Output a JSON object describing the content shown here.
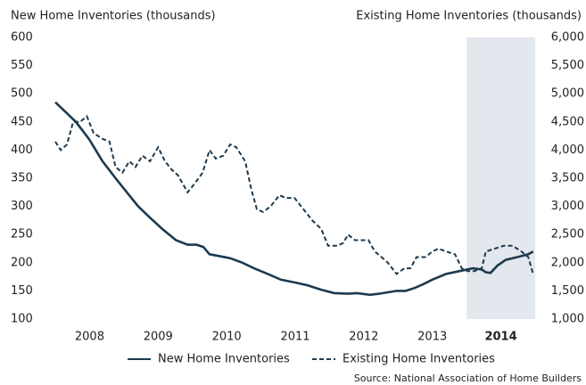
{
  "chart_data": {
    "type": "line",
    "y_label": "New Home Inventories (thousands)",
    "y2_label": "Existing Home Inventories (thousands)",
    "source": "Source: National Association of Home Builders",
    "xlim": [
      2008,
      2015
    ],
    "xticks": [
      {
        "value": 2008.5,
        "label": "2008"
      },
      {
        "value": 2009.5,
        "label": "2009"
      },
      {
        "value": 2010.5,
        "label": "2010"
      },
      {
        "value": 2011.5,
        "label": "2011"
      },
      {
        "value": 2012.5,
        "label": "2012"
      },
      {
        "value": 2013.5,
        "label": "2013"
      },
      {
        "value": 2014.5,
        "label": "2014"
      }
    ],
    "shade": [
      2014,
      2015
    ],
    "shade_color": "#e3e7ee",
    "ylim": [
      100,
      600
    ],
    "yticks": [
      100,
      150,
      200,
      250,
      300,
      350,
      400,
      450,
      500,
      550,
      600
    ],
    "y2lim": [
      1000,
      6000
    ],
    "y2ticks": [
      {
        "value": 1000,
        "label": "1,000"
      },
      {
        "value": 1500,
        "label": "1,500"
      },
      {
        "value": 2000,
        "label": "2,000"
      },
      {
        "value": 2500,
        "label": "2,500"
      },
      {
        "value": 3000,
        "label": "3,000"
      },
      {
        "value": 3500,
        "label": "3,500"
      },
      {
        "value": 4000,
        "label": "4,000"
      },
      {
        "value": 4500,
        "label": "4,500"
      },
      {
        "value": 5000,
        "label": "5,000"
      },
      {
        "value": 5500,
        "label": "5,500"
      },
      {
        "value": 6000,
        "label": "6,000"
      }
    ],
    "series": [
      {
        "name": "New Home Inventories",
        "color": "#1d3a4e",
        "dash": false,
        "x": [
          2008.0,
          2008.13,
          2008.3,
          2008.49,
          2008.69,
          2008.88,
          2009.01,
          2009.21,
          2009.38,
          2009.56,
          2009.76,
          2009.93,
          2010.06,
          2010.16,
          2010.25,
          2010.38,
          2010.55,
          2010.73,
          2010.9,
          2011.1,
          2011.29,
          2011.49,
          2011.68,
          2011.88,
          2012.07,
          2012.27,
          2012.4,
          2012.59,
          2012.72,
          2012.98,
          2013.11,
          2013.24,
          2013.37,
          2013.5,
          2013.7,
          2013.89,
          2014.09,
          2014.22,
          2014.28,
          2014.35,
          2014.45,
          2014.57,
          2014.74,
          2014.9,
          2014.97
        ],
        "values": [
          485,
          470,
          450,
          420,
          380,
          350,
          330,
          300,
          280,
          260,
          240,
          232,
          232,
          228,
          215,
          212,
          208,
          200,
          190,
          180,
          170,
          165,
          160,
          152,
          146,
          145,
          146,
          143,
          145,
          150,
          150,
          155,
          162,
          170,
          180,
          185,
          190,
          188,
          183,
          182,
          195,
          205,
          210,
          215,
          220
        ]
      },
      {
        "name": "Existing Home Inventories",
        "color": "#1d3a4e",
        "dash": true,
        "axis": "y2",
        "x": [
          2008.0,
          2008.08,
          2008.17,
          2008.26,
          2008.36,
          2008.46,
          2008.56,
          2008.69,
          2008.79,
          2008.88,
          2008.98,
          2009.08,
          2009.17,
          2009.27,
          2009.38,
          2009.5,
          2009.6,
          2009.7,
          2009.79,
          2009.93,
          2010.03,
          2010.15,
          2010.25,
          2010.34,
          2010.45,
          2010.55,
          2010.64,
          2010.77,
          2010.86,
          2010.94,
          2011.03,
          2011.14,
          2011.27,
          2011.36,
          2011.49,
          2011.62,
          2011.75,
          2011.88,
          2011.98,
          2012.11,
          2012.2,
          2012.27,
          2012.37,
          2012.46,
          2012.57,
          2012.66,
          2012.76,
          2012.85,
          2012.98,
          2013.09,
          2013.18,
          2013.27,
          2013.4,
          2013.5,
          2013.59,
          2013.7,
          2013.83,
          2013.93,
          2014.02,
          2014.11,
          2014.22,
          2014.28,
          2014.41,
          2014.54,
          2014.67,
          2014.8,
          2014.9,
          2014.97
        ],
        "values": [
          4150,
          4000,
          4100,
          4500,
          4500,
          4600,
          4300,
          4200,
          4150,
          3700,
          3600,
          3800,
          3700,
          3900,
          3800,
          4050,
          3800,
          3650,
          3550,
          3250,
          3400,
          3600,
          4000,
          3850,
          3900,
          4100,
          4050,
          3800,
          3300,
          2950,
          2900,
          3000,
          3200,
          3150,
          3150,
          2950,
          2750,
          2600,
          2300,
          2300,
          2350,
          2500,
          2400,
          2400,
          2400,
          2200,
          2100,
          2000,
          1800,
          1900,
          1900,
          2100,
          2100,
          2200,
          2250,
          2200,
          2150,
          1900,
          1850,
          1850,
          1900,
          2200,
          2250,
          2300,
          2300,
          2200,
          2100,
          1800
        ]
      }
    ]
  }
}
